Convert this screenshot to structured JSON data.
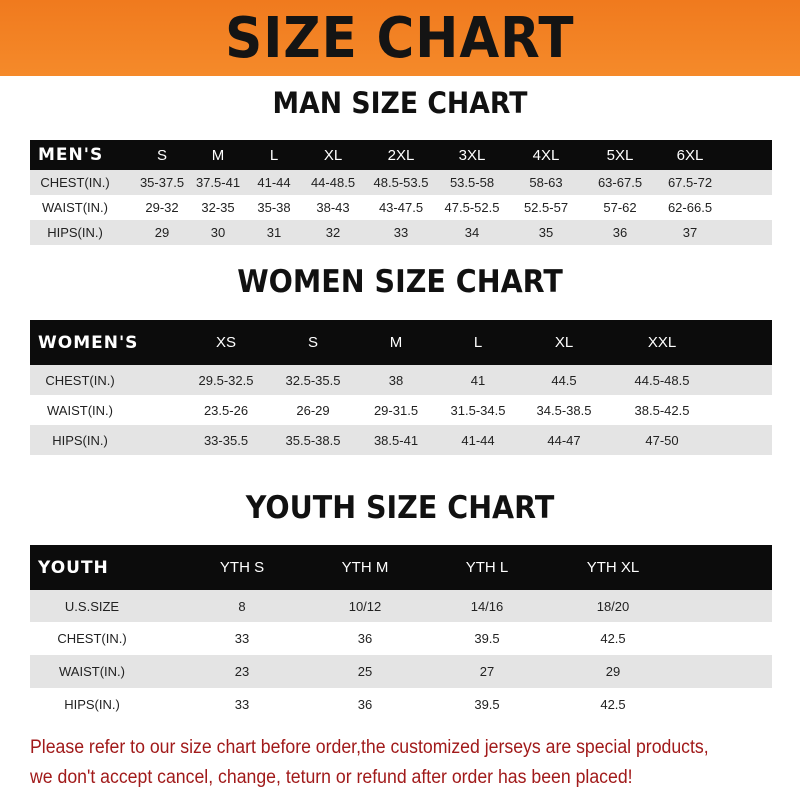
{
  "banner": "SIZE CHART",
  "colors": {
    "banner": "#f58a2a",
    "header_row": "#0c0c0c",
    "stripe": "#e4e4e4",
    "note": "#a11a1a"
  },
  "tables": [
    {
      "title": "MAN SIZE CHART",
      "header": [
        "MEN'S",
        "S",
        "M",
        "L",
        "XL",
        "2XL",
        "3XL",
        "4XL",
        "5XL",
        "6XL"
      ],
      "rows": [
        [
          "CHEST(IN.)",
          "35-37.5",
          "37.5-41",
          "41-44",
          "44-48.5",
          "48.5-53.5",
          "53.5-58",
          "58-63",
          "63-67.5",
          "67.5-72"
        ],
        [
          "WAIST(IN.)",
          "29-32",
          "32-35",
          "35-38",
          "38-43",
          "43-47.5",
          "47.5-52.5",
          "52.5-57",
          "57-62",
          "62-66.5"
        ],
        [
          "HIPS(IN.)",
          "29",
          "30",
          "31",
          "32",
          "33",
          "34",
          "35",
          "36",
          "37"
        ]
      ]
    },
    {
      "title": "WOMEN SIZE CHART",
      "header": [
        "WOMEN'S",
        "XS",
        "S",
        "M",
        "L",
        "XL",
        "XXL"
      ],
      "rows": [
        [
          "CHEST(IN.)",
          "29.5-32.5",
          "32.5-35.5",
          "38",
          "41",
          "44.5",
          "44.5-48.5"
        ],
        [
          "WAIST(IN.)",
          "23.5-26",
          "26-29",
          "29-31.5",
          "31.5-34.5",
          "34.5-38.5",
          "38.5-42.5"
        ],
        [
          "HIPS(IN.)",
          "33-35.5",
          "35.5-38.5",
          "38.5-41",
          "41-44",
          "44-47",
          "47-50"
        ]
      ]
    },
    {
      "title": "YOUTH SIZE CHART",
      "header": [
        "YOUTH",
        "YTH S",
        "YTH M",
        "YTH L",
        "YTH XL"
      ],
      "rows": [
        [
          "U.S.SIZE",
          "8",
          "10/12",
          "14/16",
          "18/20"
        ],
        [
          "CHEST(IN.)",
          "33",
          "36",
          "39.5",
          "42.5"
        ],
        [
          "WAIST(IN.)",
          "23",
          "25",
          "27",
          "29"
        ],
        [
          "HIPS(IN.)",
          "33",
          "36",
          "39.5",
          "42.5"
        ]
      ]
    }
  ],
  "note": [
    "Please refer to our size chart before order,the customized jerseys are special products,",
    "we don't accept cancel, change, teturn or refund after order has been placed!"
  ]
}
